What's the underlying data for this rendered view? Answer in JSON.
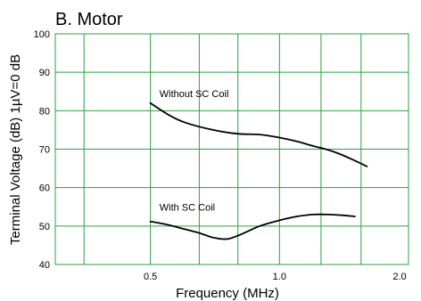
{
  "chart_data": {
    "type": "line",
    "title": "B. Motor",
    "xlabel": "Frequency (MHz)",
    "ylabel": "Terminal Voltage (dB) 1µV=0 dB",
    "x_scale": "log",
    "xlim": [
      0.3,
      2.0
    ],
    "ylim": [
      40,
      100
    ],
    "x_ticks": [
      {
        "value": 0.5,
        "label": "0.5"
      },
      {
        "value": 1.0,
        "label": "1.0"
      },
      {
        "value": 2.0,
        "label": "2.0"
      }
    ],
    "x_grid": [
      0.3,
      0.35,
      0.5,
      0.65,
      0.8,
      1.0,
      1.25,
      1.55,
      2.0
    ],
    "y_ticks": [
      40,
      50,
      60,
      70,
      80,
      90,
      100
    ],
    "grid": true,
    "legend": "none",
    "series": [
      {
        "name": "Without SC Coil",
        "label_at": {
          "x": 0.51,
          "y": 83.5
        },
        "x": [
          0.5,
          0.55,
          0.6,
          0.7,
          0.8,
          0.9,
          1.0,
          1.1,
          1.2,
          1.3,
          1.4,
          1.5,
          1.6
        ],
        "y": [
          82,
          79,
          77,
          75,
          74,
          73.8,
          73,
          72,
          70.8,
          69.8,
          68.5,
          67,
          65.5
        ]
      },
      {
        "name": "With SC Coil",
        "label_at": {
          "x": 0.51,
          "y": 54
        },
        "x": [
          0.5,
          0.55,
          0.6,
          0.65,
          0.7,
          0.75,
          0.8,
          0.9,
          1.0,
          1.1,
          1.2,
          1.3,
          1.4,
          1.5
        ],
        "y": [
          51.2,
          50.3,
          49.2,
          48.2,
          47,
          46.6,
          47.5,
          50,
          51.5,
          52.5,
          53,
          53,
          52.8,
          52.5
        ]
      }
    ]
  }
}
